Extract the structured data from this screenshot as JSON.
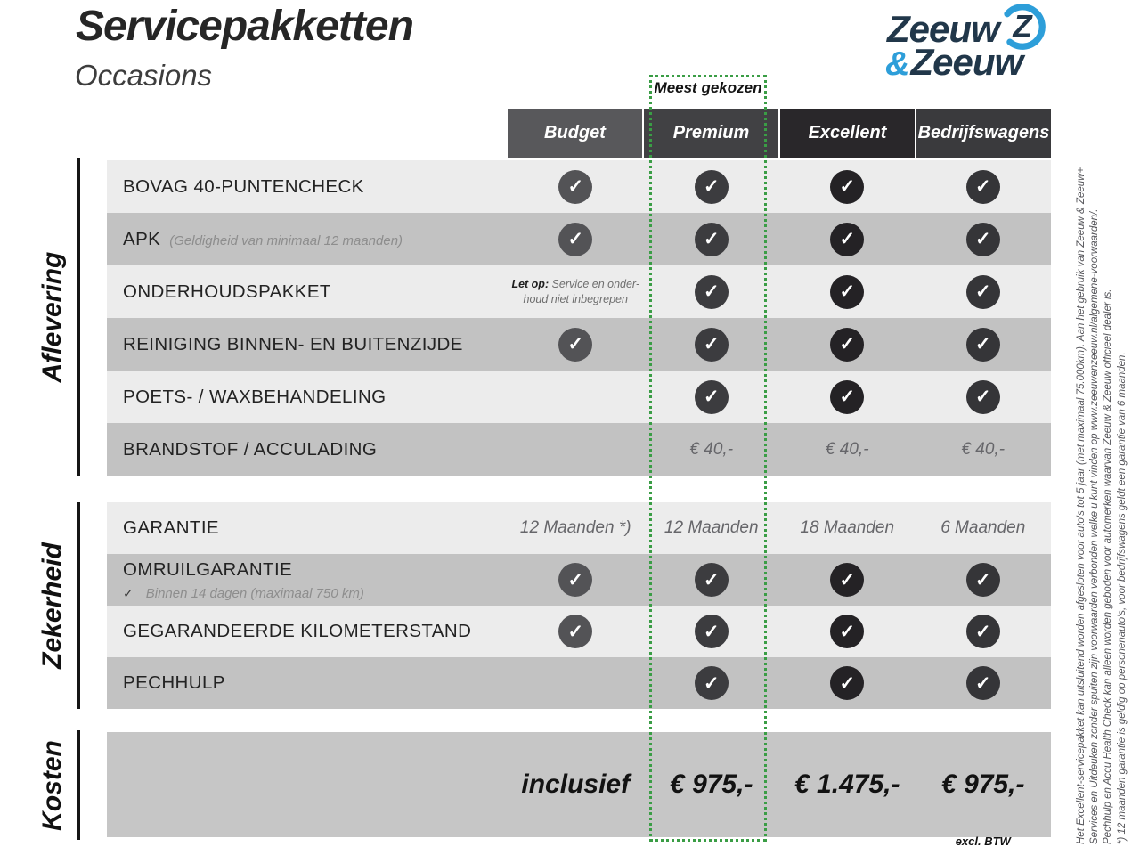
{
  "page": {
    "title": "Servicepakketten",
    "subtitle": "Occasions"
  },
  "logo": {
    "word1": "Zeeuw",
    "amp": "&",
    "word2": "Zeeuw"
  },
  "badge": {
    "label": "Meest gekozen"
  },
  "icons": {
    "check": "✓"
  },
  "colors": {
    "accent_green": "#3a9d45",
    "navy": "#21374a",
    "blue": "#2d9ed9"
  },
  "columns": [
    {
      "key": "budget",
      "label": "Budget",
      "header_color": "#58585b",
      "check_color": "#535356"
    },
    {
      "key": "premium",
      "label": "Premium",
      "header_color": "#414144",
      "check_color": "#3c3c3f"
    },
    {
      "key": "excellent",
      "label": "Excellent",
      "header_color": "#29272a",
      "check_color": "#242225"
    },
    {
      "key": "bedrijfswagens",
      "label": "Bedrijfswagens",
      "header_color": "#3a3a3d",
      "check_color": "#353538"
    }
  ],
  "sections": [
    {
      "label": "Aflevering",
      "rows": [
        {
          "label": "BOVAG 40-PUNTENCHECK",
          "cells": [
            {
              "type": "check"
            },
            {
              "type": "check"
            },
            {
              "type": "check"
            },
            {
              "type": "check"
            }
          ]
        },
        {
          "label": "APK",
          "inline_note": "(Geldigheid van minimaal 12 maanden)",
          "cells": [
            {
              "type": "check"
            },
            {
              "type": "check"
            },
            {
              "type": "check"
            },
            {
              "type": "check"
            }
          ]
        },
        {
          "label": "ONDERHOUDSPAKKET",
          "cells": [
            {
              "type": "note",
              "prefix": "Let op:",
              "line1": "Service en onder-",
              "line2": "houd niet inbegrepen"
            },
            {
              "type": "check"
            },
            {
              "type": "check"
            },
            {
              "type": "check"
            }
          ]
        },
        {
          "label": "REINIGING BINNEN- EN BUITENZIJDE",
          "cells": [
            {
              "type": "check"
            },
            {
              "type": "check"
            },
            {
              "type": "check"
            },
            {
              "type": "check"
            }
          ]
        },
        {
          "label": "POETS- / WAXBEHANDELING",
          "cells": [
            {
              "type": "empty"
            },
            {
              "type": "check"
            },
            {
              "type": "check"
            },
            {
              "type": "check"
            }
          ]
        },
        {
          "label": "BRANDSTOF / ACCULADING",
          "cells": [
            {
              "type": "empty"
            },
            {
              "type": "text",
              "value": "€ 40,-"
            },
            {
              "type": "text",
              "value": "€ 40,-"
            },
            {
              "type": "text",
              "value": "€ 40,-"
            }
          ]
        }
      ]
    },
    {
      "label": "Zekerheid",
      "rows": [
        {
          "label": "GARANTIE",
          "cells": [
            {
              "type": "text",
              "value": "12 Maanden *)"
            },
            {
              "type": "text",
              "value": "12 Maanden"
            },
            {
              "type": "text",
              "value": "18 Maanden"
            },
            {
              "type": "text",
              "value": "6 Maanden"
            }
          ]
        },
        {
          "label": "OMRUILGARANTIE",
          "subline_prefix": "✓",
          "subline": "Binnen 14 dagen (maximaal 750 km)",
          "cells": [
            {
              "type": "check"
            },
            {
              "type": "check"
            },
            {
              "type": "check"
            },
            {
              "type": "check"
            }
          ]
        },
        {
          "label": "GEGARANDEERDE KILOMETERSTAND",
          "cells": [
            {
              "type": "check"
            },
            {
              "type": "check"
            },
            {
              "type": "check"
            },
            {
              "type": "check"
            }
          ]
        },
        {
          "label": "PECHHULP",
          "cells": [
            {
              "type": "empty"
            },
            {
              "type": "check"
            },
            {
              "type": "check"
            },
            {
              "type": "check"
            }
          ]
        }
      ]
    },
    {
      "label": "Kosten",
      "rows": [
        {
          "label": "",
          "cells": [
            {
              "type": "price",
              "value": "inclusief"
            },
            {
              "type": "price",
              "value": "€ 975,-"
            },
            {
              "type": "price",
              "value": "€ 1.475,-"
            },
            {
              "type": "price",
              "value": "€ 975,-",
              "sub": "excl. BTW"
            }
          ]
        }
      ]
    }
  ],
  "disclaimer": {
    "lines": [
      "Het Excellent-servicepakket kan uitsluitend worden afgesloten voor auto's tot 5 jaar (met maximaal 75.000km). Aan het gebruik van Zeeuw & Zeeuw+",
      "Services en Uitdeuken zonder spuiten zijn voorwaarden verbonden welke u kunt vinden op www.zeeuwenzeeuw.nl/algemene-voorwaarden/.",
      "Pechhulp en Accu Health Check kan alleen worden geboden voor automerken waarvan Zeeuw & Zeeuw officieel dealer is.",
      "*) 12 maanden garantie is geldig op personenauto's, voor bedrijfswagens geldt een garantie van 6 maanden."
    ]
  }
}
